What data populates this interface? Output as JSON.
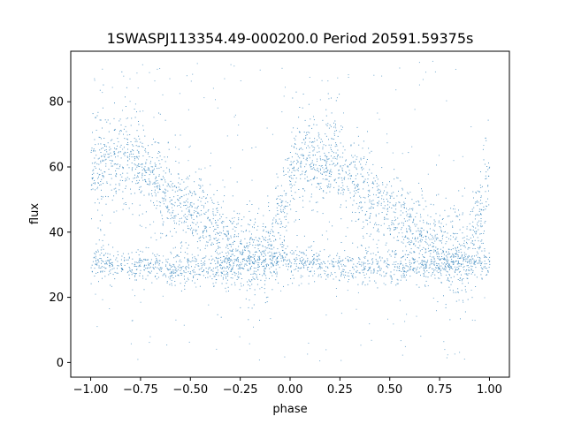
{
  "chart_data": {
    "type": "scatter",
    "title": "1SWASPJ113354.49-000200.0 Period 20591.59375s",
    "xlabel": "phase",
    "ylabel": "flux",
    "xlim": [
      -1.1,
      1.1
    ],
    "ylim": [
      -4.5,
      95.5
    ],
    "xticks": [
      -1.0,
      -0.75,
      -0.5,
      -0.25,
      0.0,
      0.25,
      0.5,
      0.75,
      1.0
    ],
    "xtick_labels": [
      "−1.00",
      "−0.75",
      "−0.50",
      "−0.25",
      "0.00",
      "0.25",
      "0.50",
      "0.75",
      "1.00"
    ],
    "yticks": [
      0,
      20,
      40,
      60,
      80
    ],
    "ytick_labels": [
      "0",
      "20",
      "40",
      "60",
      "80"
    ],
    "grid": false,
    "marker_color": "#1f77b4",
    "series": [
      {
        "points_description_free": true,
        "bands": [
          {
            "phase": [
              -1.0,
              -0.8,
              -0.55,
              -0.3,
              -0.12,
              -0.02,
              0.0,
              0.2,
              0.45,
              0.7,
              0.88,
              0.98,
              1.0
            ],
            "flux": [
              60,
              63,
              48,
              37,
              32,
              52,
              60,
              63,
              48,
              37,
              32,
              52,
              60
            ],
            "spread": 7
          },
          {
            "phase": [
              -1.0,
              -0.5,
              0.0,
              0.5,
              1.0
            ],
            "flux": [
              31,
              29,
              31,
              29,
              31
            ],
            "spread": 2.5
          }
        ],
        "scatter_range": [
          0,
          93
        ]
      }
    ]
  }
}
